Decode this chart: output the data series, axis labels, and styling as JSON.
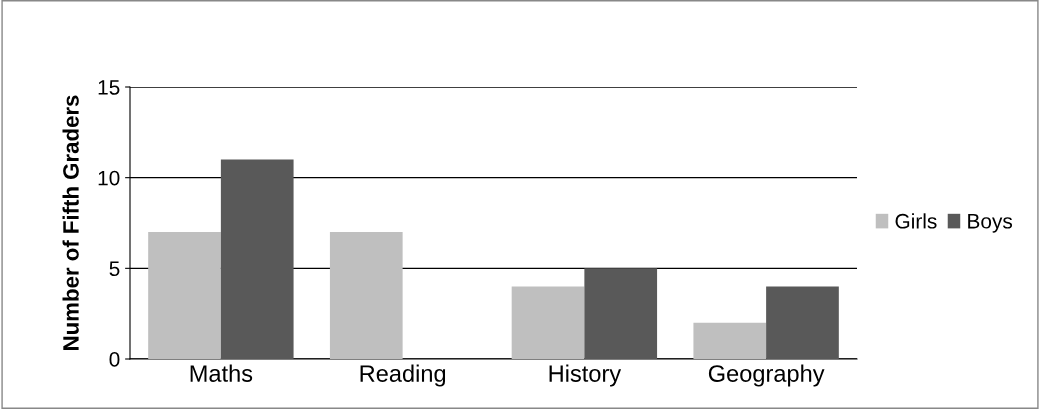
{
  "chart_data": {
    "type": "bar",
    "ylabel": "Number of Fifth Graders",
    "categories": [
      "Maths",
      "Reading",
      "History",
      "Geography"
    ],
    "series": [
      {
        "name": "Girls",
        "color": "#bfbfbf",
        "values": [
          7,
          7,
          4,
          2
        ]
      },
      {
        "name": "Boys",
        "color": "#595959",
        "values": [
          11,
          0,
          5,
          4
        ]
      }
    ],
    "ylim": [
      0,
      15
    ],
    "yticks": [
      0,
      5,
      10,
      15
    ],
    "grid": "y",
    "legend": "right"
  }
}
